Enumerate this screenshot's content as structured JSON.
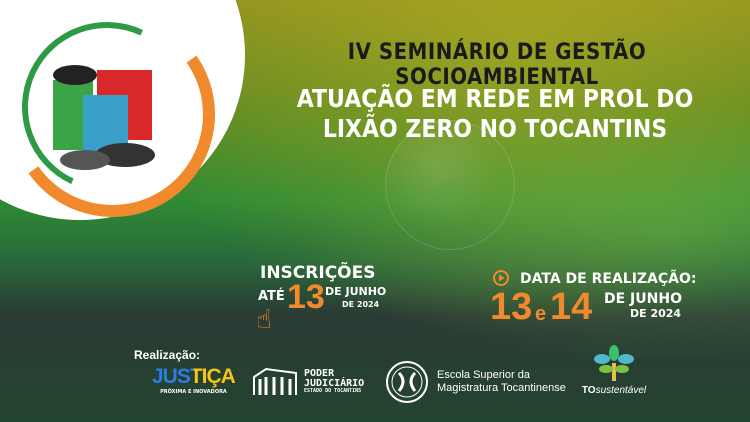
{
  "event": {
    "title": "IV SEMINÁRIO DE GESTÃO SOCIOAMBIENTAL",
    "subtitle_line1": "ATUAÇÃO EM REDE EM PROL DO",
    "subtitle_line2": "LIXÃO ZERO NO TOCANTINS"
  },
  "registration": {
    "label": "INSCRIÇÕES",
    "until": "ATÉ",
    "day": "13",
    "month": "DE JUNHO",
    "year": "DE 2024"
  },
  "realization_date": {
    "label": "DATA DE REALIZAÇÃO:",
    "day1": "13",
    "conj": "e",
    "day2": "14",
    "month": "DE JUNHO",
    "year": "DE 2024"
  },
  "footer": {
    "label": "Realização:",
    "logos": {
      "justica": {
        "name": "JUSTIÇA",
        "tagline": "PRÓXIMA E INOVADORA"
      },
      "poder": {
        "line1": "PODER",
        "line2": "JUDICIÁRIO",
        "line3": "ESTADO DO TOCANTINS"
      },
      "esmat": {
        "line1": "Escola Superior da",
        "line2": "Magistratura Tocantinense"
      },
      "tosust": {
        "bold": "TO",
        "rest": "sustentável"
      }
    }
  },
  "colors": {
    "orange": "#f08a2c",
    "green": "#2e8b3a",
    "white": "#ffffff"
  }
}
